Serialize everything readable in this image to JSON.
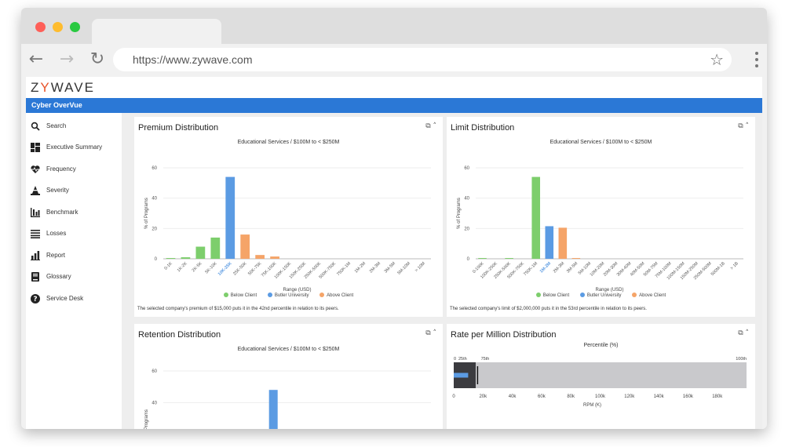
{
  "browser": {
    "url": "https://www.zywave.com"
  },
  "app": {
    "logo_prefix": "Z",
    "logo_mark": "Y",
    "logo_rest": "WAVE",
    "title": "Cyber OverVue"
  },
  "sidebar": {
    "items": [
      {
        "label": "Search",
        "icon": "search-icon"
      },
      {
        "label": "Executive Summary",
        "icon": "dashboard-icon"
      },
      {
        "label": "Frequency",
        "icon": "heart-pulse-icon"
      },
      {
        "label": "Severity",
        "icon": "cone-icon"
      },
      {
        "label": "Benchmark",
        "icon": "bar-chart-icon"
      },
      {
        "label": "Losses",
        "icon": "list-icon"
      },
      {
        "label": "Report",
        "icon": "report-chart-icon"
      },
      {
        "label": "Glossary",
        "icon": "book-icon"
      },
      {
        "label": "Service Desk",
        "icon": "help-icon"
      }
    ]
  },
  "panels": {
    "premium": {
      "title": "Premium Distribution",
      "subtitle": "Educational Services / $100M to < $250M",
      "note": "The selected company's premium of $15,000 puts it in the 42nd percentile in relation to its peers."
    },
    "limit": {
      "title": "Limit Distribution",
      "subtitle": "Educational Services / $100M to < $250M",
      "note": "The selected company's limit of $2,000,000 puts it in the 53rd percentile in relation to its peers."
    },
    "retention": {
      "title": "Retention Distribution",
      "subtitle": "Educational Services / $100M to < $250M"
    },
    "rpm": {
      "title": "Rate per Million Distribution",
      "subtitle": "Percentile (%)"
    }
  },
  "legend": {
    "below": "Below Client",
    "client": "Butler University",
    "above": "Above Client"
  },
  "colors": {
    "below": "#7dce6c",
    "client": "#5b9be3",
    "above": "#f5a468",
    "accent": "#2b78d6"
  },
  "chart_data": [
    {
      "type": "bar",
      "ylabel": "% of Programs",
      "xlabel": "Range (USD)",
      "ylim": [
        0,
        60
      ],
      "yticks": [
        0,
        20,
        40,
        60
      ],
      "categories": [
        "0-1K",
        "1K-2K",
        "2K-5K",
        "5K-10K",
        "10K-25K",
        "25K-50K",
        "50K-75K",
        "75K-100K",
        "100K-150K",
        "150K-250K",
        "250K-500K",
        "500K-750K",
        "750K-1M",
        "1M-2M",
        "2M-3M",
        "3M-5M",
        "5M-10M",
        "> 10M"
      ],
      "values": [
        0.5,
        1,
        8,
        14,
        54,
        16,
        2.5,
        1.5,
        0,
        0,
        0,
        0,
        0,
        0,
        0,
        0,
        0,
        0
      ],
      "client_index": 4
    },
    {
      "type": "bar",
      "ylabel": "% of Programs",
      "xlabel": "Range (USD)",
      "ylim": [
        0,
        60
      ],
      "yticks": [
        0,
        20,
        40,
        60
      ],
      "categories": [
        "0-100K",
        "100K-250K",
        "250K-500K",
        "500K-750K",
        "750K-1M",
        "1M-2M",
        "2M-3M",
        "3M-5M",
        "5M-10M",
        "10M-20M",
        "20M-30M",
        "30M-40M",
        "40M-50M",
        "50M-75M",
        "75M-100M",
        "100M-150M",
        "150M-250M",
        "250M-500M",
        "500M-1B",
        "> 1B"
      ],
      "values": [
        0.5,
        0,
        0.5,
        0,
        54,
        21.5,
        20.5,
        0.5,
        0,
        0,
        0,
        0,
        0,
        0,
        0,
        0,
        0,
        0,
        0,
        0
      ],
      "client_index": 5
    },
    {
      "type": "bar",
      "ylabel": "% of Programs",
      "ylim": [
        0,
        60
      ],
      "yticks": [
        40,
        60
      ],
      "categories": [],
      "values": [],
      "visible_client_value": 48
    },
    {
      "type": "bar",
      "xlabel": "RPM (K)",
      "xlim": [
        0,
        200
      ],
      "xticks": [
        "0",
        "20k",
        "40k",
        "60k",
        "80k",
        "100k",
        "120k",
        "140k",
        "160k",
        "180k"
      ],
      "percentile_labels": [
        "0",
        "25th",
        "75th",
        "100th"
      ],
      "p25": 0,
      "p75": 15,
      "max": 200,
      "client": 12
    }
  ]
}
